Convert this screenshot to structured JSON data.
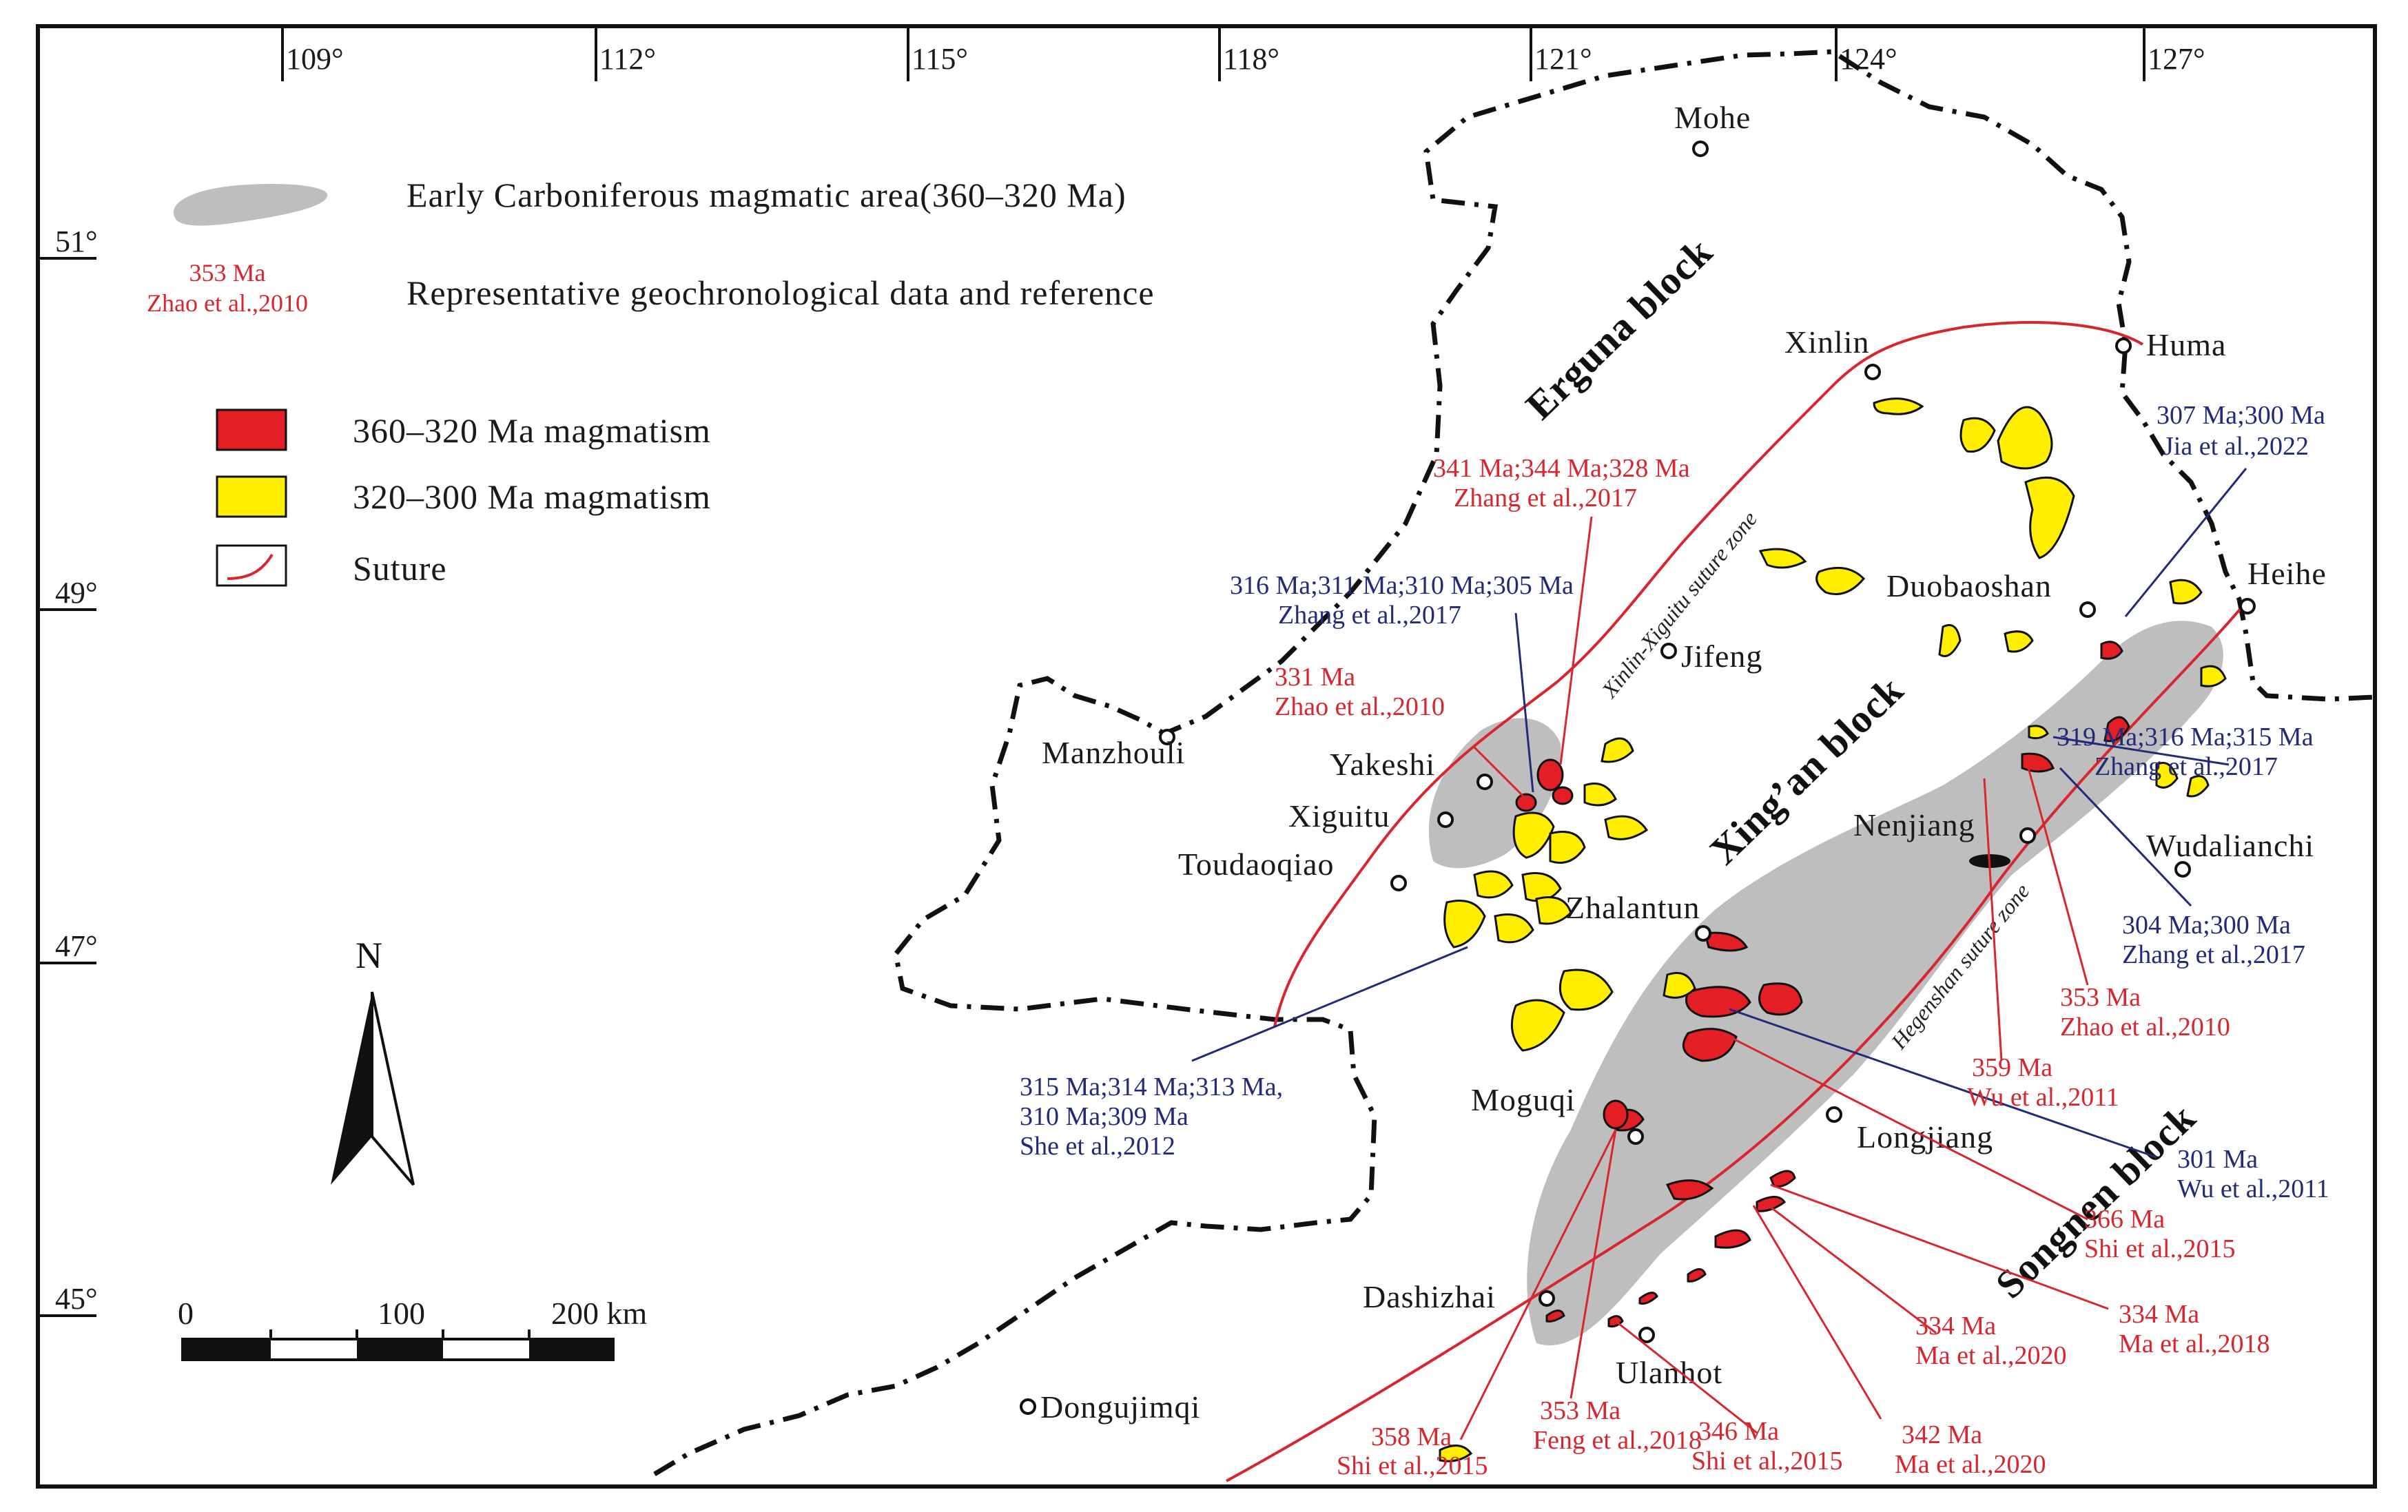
{
  "longitudes": [
    "109°",
    "112°",
    "115°",
    "118°",
    "121°",
    "124°",
    "127°"
  ],
  "latitudes": [
    "51°",
    "49°",
    "47°",
    "45°"
  ],
  "cities": {
    "mohe": "Mohe",
    "xinlin": "Xinlin",
    "huma": "Huma",
    "duobaoshan": "Duobaoshan",
    "heihe": "Heihe",
    "jifeng": "Jifeng",
    "manzhouli": "Manzhouli",
    "yakeshi": "Yakeshi",
    "xiguitu": "Xiguitu",
    "toudaoqiao": "Toudaoqiao",
    "zhalantun": "Zhalantun",
    "nenjiang": "Nenjiang",
    "wudalianchi": "Wudalianchi",
    "moguqi": "Moguqi",
    "longjiang": "Longjiang",
    "dashizhai": "Dashizhai",
    "ulanhot": "Ulanhot",
    "dongujimqi": "Dongujimqi"
  },
  "blocks": {
    "erguna": "Erguna block",
    "xingan": "Xing’an block",
    "songnen": "Songnen block"
  },
  "sutures": {
    "xinlin": "Xinlin-Xiguitu suture zone",
    "hegenshan": "Hegenshan suture zone"
  },
  "legend": {
    "gray_area": "Early Carboniferous magmatic area(360–320 Ma)",
    "sample_age": "353 Ma",
    "sample_ref": "Zhao et al.,2010",
    "geochron": "Representative geochronological data and reference",
    "red": "360–320 Ma magmatism",
    "yellow": "320–300 Ma magmatism",
    "suture": "Suture"
  },
  "colors": {
    "red": "#e31e24",
    "yellow": "#ffee00",
    "gray": "#bebebe",
    "suture": "#d8262e",
    "label_blue": "#232a78"
  },
  "north": "N",
  "scale": {
    "zero": "0",
    "mid": "100",
    "end": "200 km"
  },
  "labels": {
    "l1_age": "341 Ma;344 Ma;328 Ma",
    "l1_ref": "Zhang et al.,2017",
    "l2_age": "316 Ma;311 Ma;310 Ma;305 Ma",
    "l2_ref": "Zhang et al.,2017",
    "l3_age": "331 Ma",
    "l3_ref": "Zhao et al.,2010",
    "l4_age": "307 Ma;300 Ma",
    "l4_ref": "Jia et al.,2022",
    "l5_age": "319 Ma;316 Ma;315 Ma",
    "l5_ref": "Zhang et al.,2017",
    "l6_age": "304 Ma;300 Ma",
    "l6_ref": "Zhang et al.,2017",
    "l7_age": "353 Ma",
    "l7_ref": "Zhao et al.,2010",
    "l8_age": "359 Ma",
    "l8_ref": "Wu et al.,2011",
    "l9_age1": "315 Ma;314 Ma;313 Ma,",
    "l9_age2": "310 Ma;309 Ma",
    "l9_ref": "She et al.,2012",
    "l10_age": "301 Ma",
    "l10_ref": "Wu et al.,2011",
    "l11_age": "366 Ma",
    "l11_ref": "Shi et al.,2015",
    "l12_age": "334 Ma",
    "l12_ref": "Ma et al.,2020",
    "l13_age": "334 Ma",
    "l13_ref": "Ma et al.,2018",
    "l14_age": "342 Ma",
    "l14_ref": "Ma et al.,2020",
    "l15_age": "346 Ma",
    "l15_ref": "Shi et al.,2015",
    "l16_age": "353 Ma",
    "l16_ref": "Feng et al.,2018",
    "l17_age": "358 Ma",
    "l17_ref": "Shi et al.,2015"
  }
}
